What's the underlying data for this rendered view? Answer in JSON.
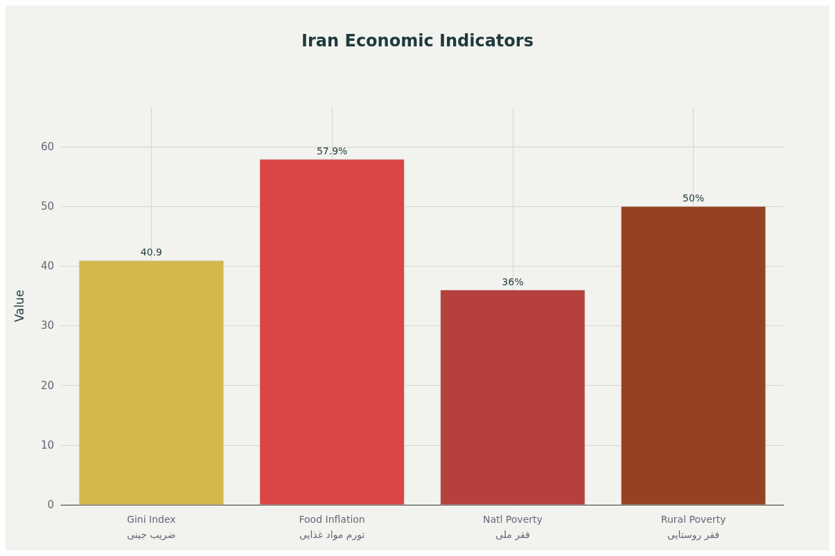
{
  "chart_data": {
    "type": "bar",
    "title": "Iran Economic Indicators",
    "ylabel": "Value",
    "categories": [
      "Gini Index\nضریب جینی",
      "Food Inflation\nتورم مواد غذایی",
      "Natl Poverty\nفقر ملی",
      "Rural Poverty\nفقر روستایی"
    ],
    "values": [
      40.9,
      57.9,
      36,
      50
    ],
    "colors": [
      "#d4b84c",
      "#db4545",
      "#b5403e",
      "#954224"
    ],
    "value_labels": [
      "40.9",
      "57.9%",
      "36%",
      "50%"
    ],
    "ylim": [
      0,
      66.6
    ],
    "yticks": [
      0,
      10,
      20,
      30,
      40,
      50,
      60
    ],
    "grid": true
  }
}
